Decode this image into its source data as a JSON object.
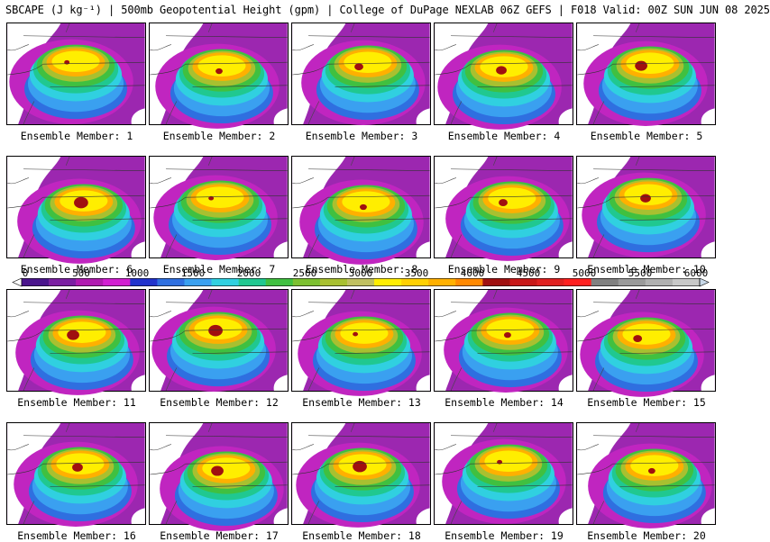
{
  "header": {
    "title": "SBCAPE (J kg⁻¹) | 500mb Geopotential Height (gpm) | College of DuPage NEXLAB 06Z GEFS | F018 Valid: 00Z SUN JUN 08 2025"
  },
  "colorbar": {
    "ticks": [
      "0",
      "500",
      "1000",
      "1500",
      "2000",
      "2500",
      "3000",
      "3500",
      "4000",
      "4500",
      "5000",
      "5500",
      "6000"
    ],
    "colors": [
      "#4a148c",
      "#7b1fa2",
      "#b01ab0",
      "#d21fd2",
      "#2233cc",
      "#2f6fe0",
      "#3aa0f0",
      "#30d0e0",
      "#20c890",
      "#40c040",
      "#7cc030",
      "#a8c030",
      "#c0c060",
      "#ffee00",
      "#ffd000",
      "#ffb000",
      "#ff8800",
      "#a01010",
      "#c81818",
      "#e02020",
      "#ff2020",
      "#808080",
      "#9a9a9a",
      "#b0b0b0",
      "#c8c8c8"
    ]
  },
  "panels": [
    {
      "label": "Ensemble Member: 1"
    },
    {
      "label": "Ensemble Member: 2"
    },
    {
      "label": "Ensemble Member: 3"
    },
    {
      "label": "Ensemble Member: 4"
    },
    {
      "label": "Ensemble Member: 5"
    },
    {
      "label": "Ensemble Member: 6"
    },
    {
      "label": "Ensemble Member: 7"
    },
    {
      "label": "Ensemble Member: 8"
    },
    {
      "label": "Ensemble Member: 9"
    },
    {
      "label": "Ensemble Member: 10"
    },
    {
      "label": "Ensemble Member: 11"
    },
    {
      "label": "Ensemble Member: 12"
    },
    {
      "label": "Ensemble Member: 13"
    },
    {
      "label": "Ensemble Member: 14"
    },
    {
      "label": "Ensemble Member: 15"
    },
    {
      "label": "Ensemble Member: 16"
    },
    {
      "label": "Ensemble Member: 17"
    },
    {
      "label": "Ensemble Member: 18"
    },
    {
      "label": "Ensemble Member: 19"
    },
    {
      "label": "Ensemble Member: 20"
    }
  ]
}
